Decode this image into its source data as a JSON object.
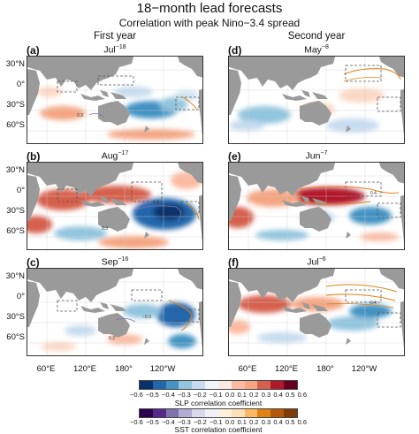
{
  "header": {
    "title": "18−month lead forecasts",
    "subtitle": "Correlation with peak Nino−3.4 spread",
    "col1": "First year",
    "col2": "Second year"
  },
  "panels": [
    {
      "label": "(a)",
      "month": "Jul",
      "sup": "−18"
    },
    {
      "label": "(b)",
      "month": "Aug",
      "sup": "−17"
    },
    {
      "label": "(c)",
      "month": "Sep",
      "sup": "−16"
    },
    {
      "label": "(d)",
      "month": "May",
      "sup": "−8"
    },
    {
      "label": "(e)",
      "month": "Jun",
      "sup": "−7"
    },
    {
      "label": "(f)",
      "month": "Jul",
      "sup": "−6"
    }
  ],
  "axes": {
    "lat_labels": [
      "30°N",
      "0°",
      "30°S",
      "60°S"
    ],
    "lon_labels": [
      "60°E",
      "120°E",
      "180°",
      "120°W"
    ]
  },
  "contour_labels": [
    "0.3",
    "0.4",
    "−0.3"
  ],
  "colorbars": {
    "ticks": [
      "−0.6",
      "−0.5",
      "−0.4",
      "−0.3",
      "−0.2",
      "−0.1",
      "0.0",
      "0.1",
      "0.2",
      "0.3",
      "0.4",
      "0.5",
      "0.6"
    ],
    "slp_title": "SLP correlation coefficient",
    "sst_title": "SST correlation coefficient",
    "slp_colors": [
      "#08306b",
      "#2166ac",
      "#4393c3",
      "#92c5de",
      "#c6dbef",
      "#eef4fa",
      "#fbe9e4",
      "#fcbba1",
      "#f4a582",
      "#d6604d",
      "#b2182b",
      "#67001f"
    ],
    "sst_colors": [
      "#2d004b",
      "#542788",
      "#8073ac",
      "#b2abd2",
      "#d8daeb",
      "#f1f0f7",
      "#fdf0dc",
      "#fee0b6",
      "#fdb863",
      "#e08214",
      "#b35806",
      "#7f3b08"
    ]
  }
}
